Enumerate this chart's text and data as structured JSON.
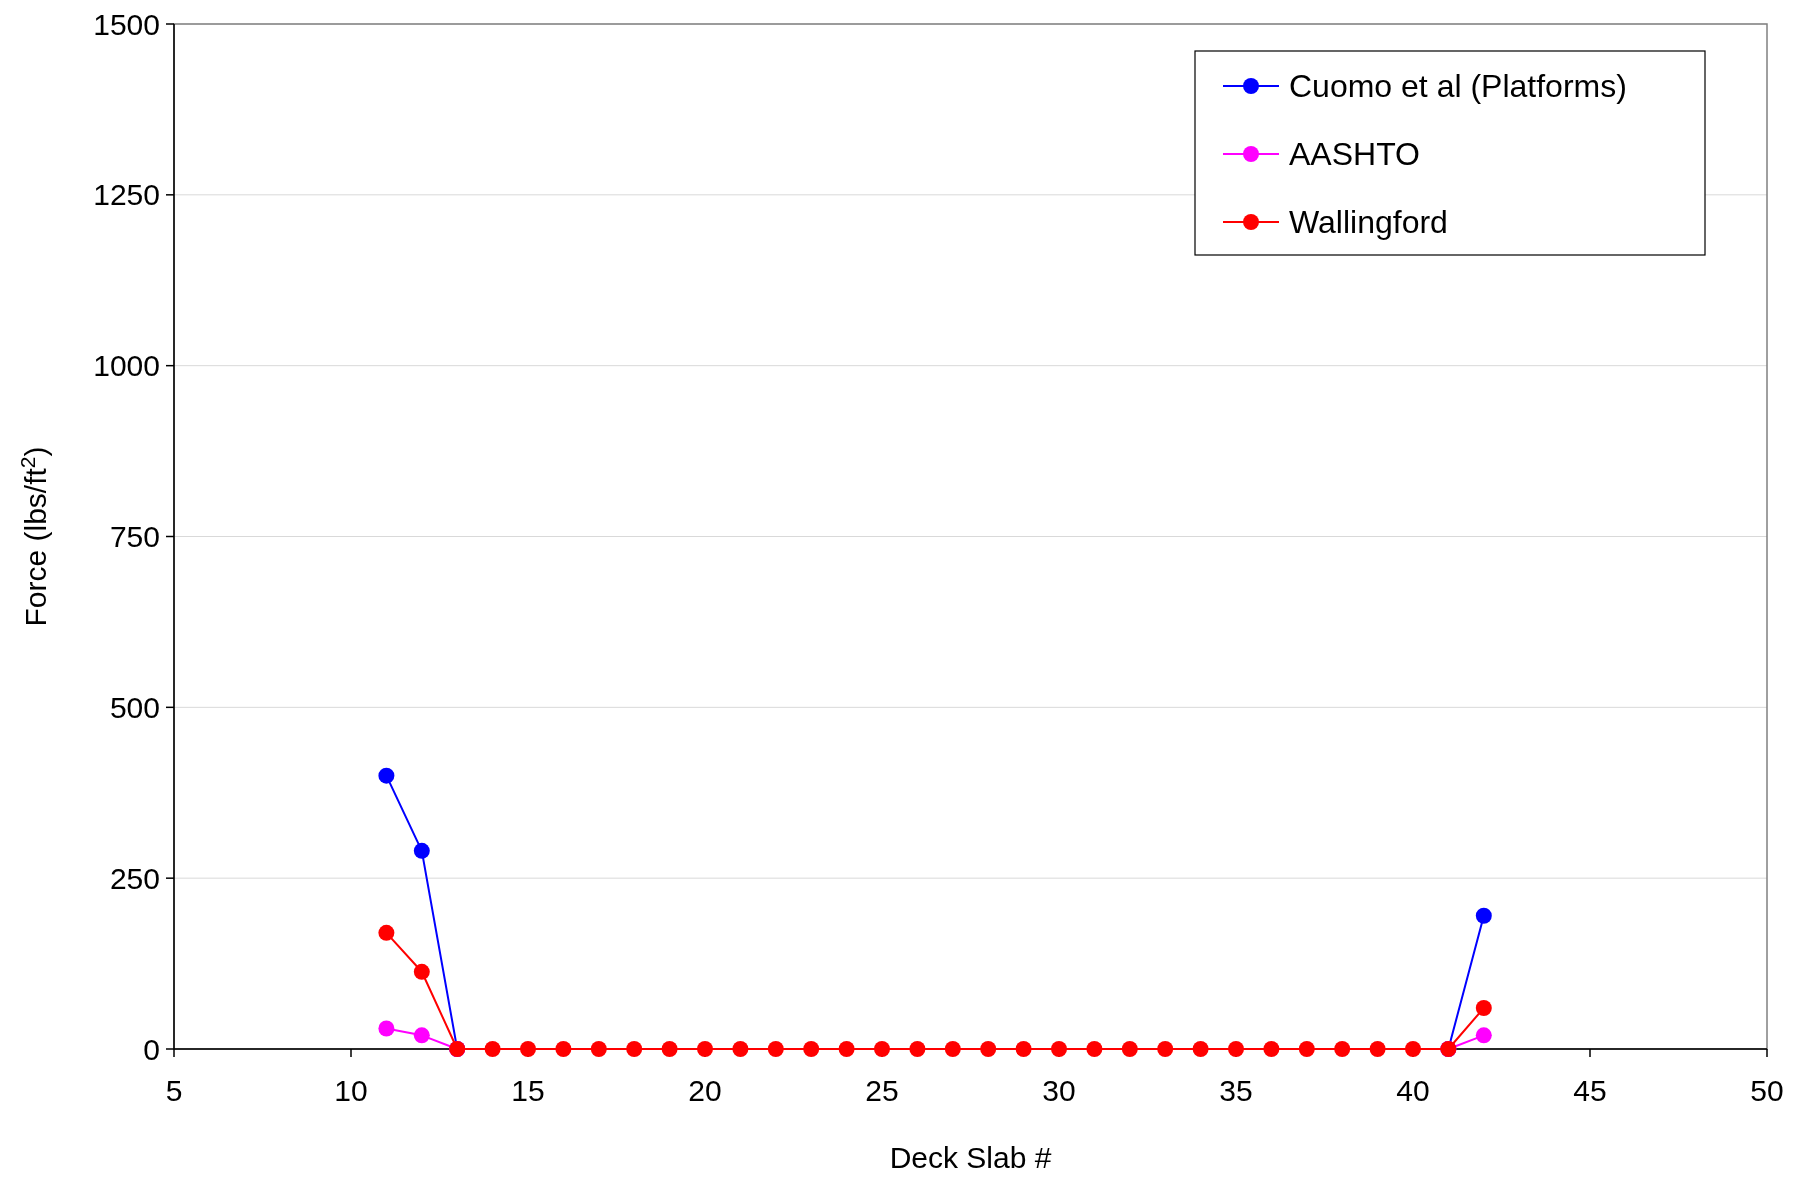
{
  "chart_data": {
    "type": "line",
    "xlabel": "Deck Slab #",
    "ylabel": "Force (lbs/ft$^{2}$)",
    "x": [
      11,
      12,
      13,
      14,
      15,
      16,
      17,
      18,
      19,
      20,
      21,
      22,
      23,
      24,
      25,
      26,
      27,
      28,
      29,
      30,
      31,
      32,
      33,
      34,
      35,
      36,
      37,
      38,
      39,
      40,
      41,
      42
    ],
    "series": [
      {
        "name": "Cuomo et al (Platforms)",
        "color": "#0000ff",
        "values": [
          400,
          290,
          0,
          null,
          null,
          null,
          null,
          null,
          null,
          null,
          null,
          null,
          null,
          null,
          null,
          null,
          null,
          null,
          null,
          null,
          null,
          null,
          null,
          null,
          null,
          null,
          null,
          null,
          null,
          null,
          0,
          195
        ]
      },
      {
        "name": "AASHTO",
        "color": "#ff00ff",
        "values": [
          30,
          20,
          0,
          null,
          null,
          null,
          null,
          null,
          null,
          null,
          null,
          null,
          null,
          null,
          null,
          null,
          null,
          null,
          null,
          null,
          null,
          null,
          null,
          null,
          null,
          null,
          null,
          null,
          null,
          null,
          0,
          20
        ]
      },
      {
        "name": "Wallingford",
        "color": "#ff0000",
        "values": [
          170,
          113,
          0,
          0,
          0,
          0,
          0,
          0,
          0,
          0,
          0,
          0,
          0,
          0,
          0,
          0,
          0,
          0,
          0,
          0,
          0,
          0,
          0,
          0,
          0,
          0,
          0,
          0,
          0,
          0,
          0,
          60
        ]
      }
    ],
    "xlim": [
      5,
      50
    ],
    "xticks": [
      5,
      10,
      15,
      20,
      25,
      30,
      35,
      40,
      45,
      50
    ],
    "ylim": [
      0,
      1500
    ],
    "yticks": [
      0,
      250,
      500,
      750,
      1000,
      1250,
      1500
    ],
    "grid": "y",
    "legend": "top right",
    "marker": "circle",
    "line_style": "solid"
  }
}
